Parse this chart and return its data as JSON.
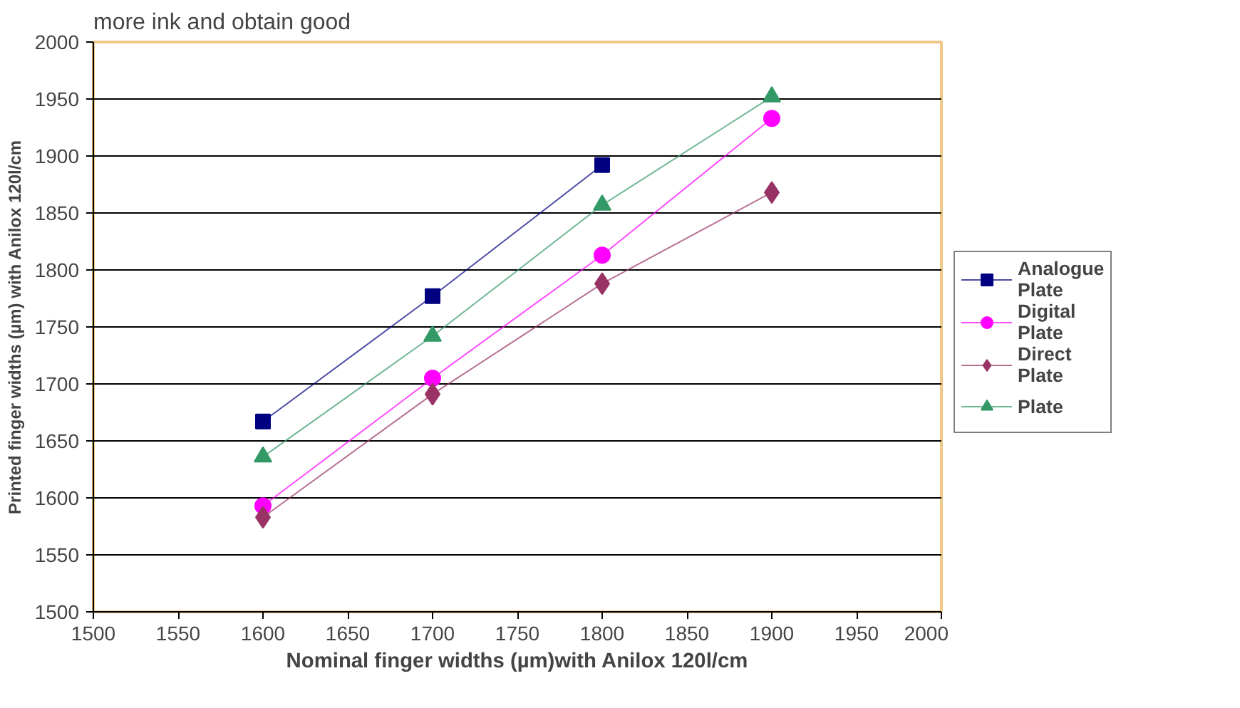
{
  "chart_data": {
    "type": "line",
    "xlabel": "Nominal finger widths (µm)with Anilox 120l/cm",
    "ylabel": "Printed finger widths (µm) with Anilox 120l/cm",
    "annotations": [
      "more ink and obtain good"
    ],
    "x": [
      1600,
      1700,
      1800,
      1900
    ],
    "series": [
      {
        "name": "Analogue Plate",
        "color": "#000080",
        "marker": "square",
        "values": [
          1667,
          1777,
          1892,
          null
        ]
      },
      {
        "name": "Digital Plate",
        "color": "#ff00ff",
        "marker": "circle",
        "values": [
          1593,
          1705,
          1813,
          1933
        ]
      },
      {
        "name": "Direct Plate",
        "color": "#993366",
        "marker": "diamond",
        "values": [
          1583,
          1691,
          1788,
          1868
        ]
      },
      {
        "name": "Plate",
        "color": "#339966",
        "marker": "triangle",
        "values": [
          1636,
          1742,
          1857,
          1952
        ]
      }
    ],
    "xlim": [
      1500,
      2000
    ],
    "xticks": [
      1500,
      1550,
      1600,
      1650,
      1700,
      1750,
      1800,
      1850,
      1900,
      1950,
      2000
    ],
    "ylim": [
      1500,
      2000
    ],
    "yticks": [
      1500,
      1550,
      1600,
      1650,
      1700,
      1750,
      1800,
      1850,
      1900,
      1950,
      2000
    ],
    "grid": "y",
    "legend": "right",
    "line_style": "solid"
  }
}
